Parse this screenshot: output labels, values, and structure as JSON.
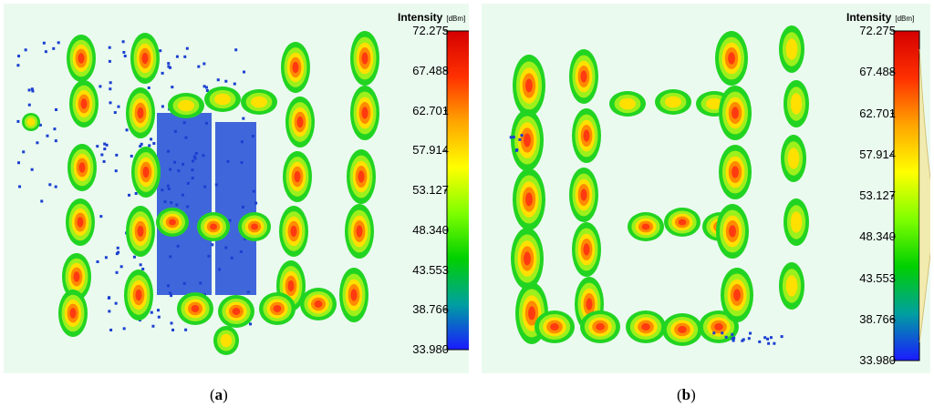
{
  "chart_data": [
    {
      "type": "heatmap",
      "panel_label": "a",
      "colorbar": {
        "title": "Intensity",
        "unit": "[dBm]",
        "ticks": [
          "72.275",
          "67.488",
          "62.701",
          "57.914",
          "53.127",
          "48.340",
          "43.553",
          "38.766",
          "33.980"
        ],
        "range": [
          33.98,
          72.275
        ],
        "colors": [
          "#1a1aff",
          "#00a0a0",
          "#00d000",
          "#7fff00",
          "#ffff00",
          "#ffa500",
          "#ff3000",
          "#d40000"
        ]
      }
    },
    {
      "type": "heatmap",
      "panel_label": "b",
      "colorbar": {
        "title": "Intensity",
        "unit": "[dBm]",
        "ticks": [
          "72.275",
          "67.488",
          "62.701",
          "57.914",
          "53.127",
          "48.340",
          "43.553",
          "38.766",
          "33.980"
        ],
        "range": [
          33.98,
          72.275
        ],
        "colors": [
          "#1a1aff",
          "#00a0a0",
          "#00d000",
          "#7fff00",
          "#ffff00",
          "#ffa500",
          "#ff3000",
          "#d40000"
        ]
      }
    }
  ],
  "captions": {
    "a": {
      "open": "(",
      "letter": "a",
      "close": ")"
    },
    "b": {
      "open": "(",
      "letter": "b",
      "close": ")"
    }
  }
}
